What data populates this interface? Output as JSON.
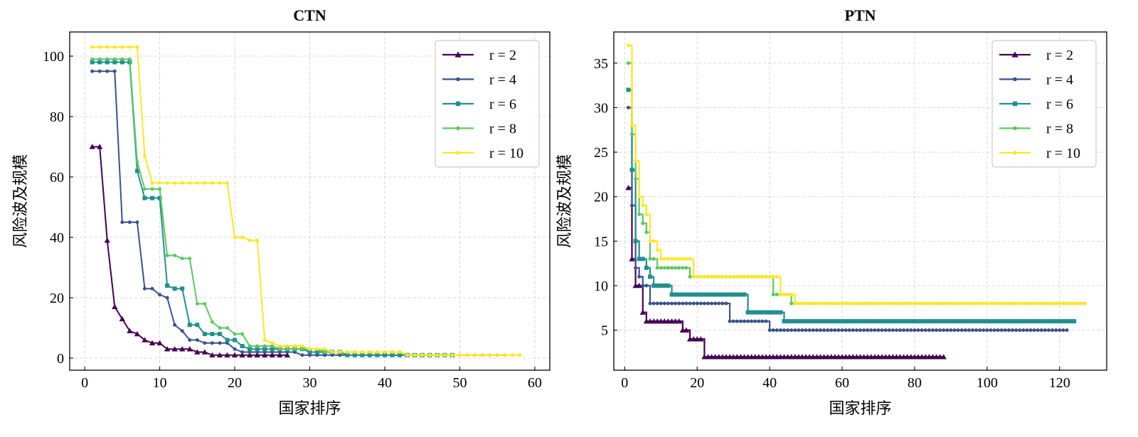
{
  "chart_data": [
    {
      "type": "line",
      "title": "CTN",
      "xlabel": "国家排序",
      "ylabel": "风险波及规模",
      "xlim": [
        -2,
        62
      ],
      "ylim": [
        -4,
        108
      ],
      "xticks": [
        0,
        10,
        20,
        30,
        40,
        50,
        60
      ],
      "yticks": [
        0,
        20,
        40,
        60,
        80,
        100
      ],
      "grid": true,
      "legend_position": "top-right",
      "series": [
        {
          "name": "r = 2",
          "color": "#440154",
          "marker": "triangle",
          "style": "line",
          "values": [
            70,
            70,
            39,
            17,
            13,
            9,
            8,
            6,
            5,
            5,
            3,
            3,
            3,
            3,
            2,
            2,
            1,
            1,
            1,
            1,
            1,
            1,
            1,
            1,
            1,
            1,
            1
          ]
        },
        {
          "name": "r = 4",
          "color": "#3b528b",
          "marker": "circle",
          "style": "line",
          "values": [
            95,
            95,
            95,
            95,
            45,
            45,
            45,
            23,
            23,
            21,
            20,
            11,
            9,
            6,
            6,
            5,
            5,
            5,
            5,
            3,
            2,
            2,
            2,
            2,
            2,
            2,
            2,
            2,
            1,
            1,
            1,
            1,
            1,
            1,
            1,
            1,
            1,
            1,
            1,
            1,
            1,
            1,
            1,
            1,
            1
          ]
        },
        {
          "name": "r = 6",
          "color": "#21908d",
          "marker": "square",
          "style": "line",
          "values": [
            98,
            98,
            98,
            98,
            98,
            98,
            62,
            53,
            53,
            53,
            24,
            23,
            23,
            11,
            11,
            8,
            8,
            8,
            6,
            6,
            4,
            3,
            3,
            3,
            3,
            3,
            3,
            3,
            3,
            2,
            2,
            2,
            2,
            2,
            1,
            1,
            1,
            1,
            1,
            1,
            1,
            1,
            1,
            1,
            1,
            1,
            1,
            1,
            1
          ]
        },
        {
          "name": "r = 8",
          "color": "#5dc863",
          "marker": "circle",
          "style": "line",
          "values": [
            99,
            99,
            99,
            99,
            99,
            99,
            65,
            56,
            56,
            56,
            34,
            34,
            33,
            33,
            18,
            18,
            12,
            10,
            10,
            8,
            8,
            4,
            4,
            4,
            4,
            3,
            3,
            3,
            3,
            3,
            3,
            2,
            2,
            2,
            2,
            2,
            2,
            2,
            2,
            2,
            2,
            2,
            1,
            1,
            1,
            1,
            1,
            1,
            1,
            1,
            1,
            1,
            1,
            1,
            1,
            1
          ]
        },
        {
          "name": "r = 10",
          "color": "#fde725",
          "marker": "circle",
          "style": "line",
          "values": [
            103,
            103,
            103,
            103,
            103,
            103,
            103,
            67,
            58,
            58,
            58,
            58,
            58,
            58,
            58,
            58,
            58,
            58,
            58,
            40,
            40,
            39,
            39,
            6,
            5,
            4,
            4,
            4,
            4,
            3,
            3,
            3,
            2,
            2,
            2,
            2,
            2,
            2,
            2,
            2,
            2,
            2,
            1,
            1,
            1,
            1,
            1,
            1,
            1,
            1,
            1,
            1,
            1,
            1,
            1,
            1,
            1,
            1
          ]
        }
      ]
    },
    {
      "type": "line",
      "title": "PTN",
      "xlabel": "国家排序",
      "ylabel": "风险波及规模",
      "xlim": [
        -3,
        133
      ],
      "ylim": [
        0.5,
        38.5
      ],
      "xticks": [
        0,
        20,
        40,
        60,
        80,
        100,
        120
      ],
      "yticks": [
        5,
        10,
        15,
        20,
        25,
        30,
        35
      ],
      "grid": true,
      "legend_position": "top-right",
      "series": [
        {
          "name": "r = 2",
          "color": "#440154",
          "marker": "triangle",
          "style": "step",
          "n": 88,
          "steps": [
            [
              1,
              21
            ],
            [
              2,
              13
            ],
            [
              3,
              10
            ],
            [
              4,
              10
            ],
            [
              5,
              7
            ],
            [
              6,
              6
            ],
            [
              16,
              5
            ],
            [
              18,
              4
            ],
            [
              22,
              2
            ]
          ]
        },
        {
          "name": "r = 4",
          "color": "#3b528b",
          "marker": "circle",
          "style": "step",
          "n": 122,
          "steps": [
            [
              1,
              30
            ],
            [
              2,
              19
            ],
            [
              3,
              12
            ],
            [
              4,
              11
            ],
            [
              5,
              10
            ],
            [
              7,
              8
            ],
            [
              29,
              6
            ],
            [
              40,
              5
            ]
          ]
        },
        {
          "name": "r = 6",
          "color": "#21908d",
          "marker": "square",
          "style": "step",
          "n": 124,
          "steps": [
            [
              1,
              32
            ],
            [
              2,
              23
            ],
            [
              3,
              15
            ],
            [
              4,
              13
            ],
            [
              6,
              12
            ],
            [
              7,
              11
            ],
            [
              8,
              10
            ],
            [
              13,
              9
            ],
            [
              34,
              7
            ],
            [
              44,
              6
            ]
          ]
        },
        {
          "name": "r = 8",
          "color": "#5dc863",
          "marker": "circle",
          "style": "step",
          "n": 127,
          "steps": [
            [
              1,
              35
            ],
            [
              2,
              27
            ],
            [
              3,
              22
            ],
            [
              4,
              18
            ],
            [
              5,
              17
            ],
            [
              6,
              16
            ],
            [
              7,
              13
            ],
            [
              9,
              12
            ],
            [
              18,
              11
            ],
            [
              41,
              9
            ],
            [
              46,
              8
            ]
          ]
        },
        {
          "name": "r = 10",
          "color": "#fde725",
          "marker": "circle",
          "style": "step",
          "n": 127,
          "steps": [
            [
              1,
              37
            ],
            [
              2,
              28
            ],
            [
              3,
              24
            ],
            [
              4,
              20
            ],
            [
              5,
              19
            ],
            [
              6,
              18
            ],
            [
              7,
              15
            ],
            [
              9,
              14
            ],
            [
              10,
              13
            ],
            [
              19,
              11
            ],
            [
              43,
              9
            ],
            [
              47,
              8
            ]
          ]
        }
      ]
    }
  ]
}
